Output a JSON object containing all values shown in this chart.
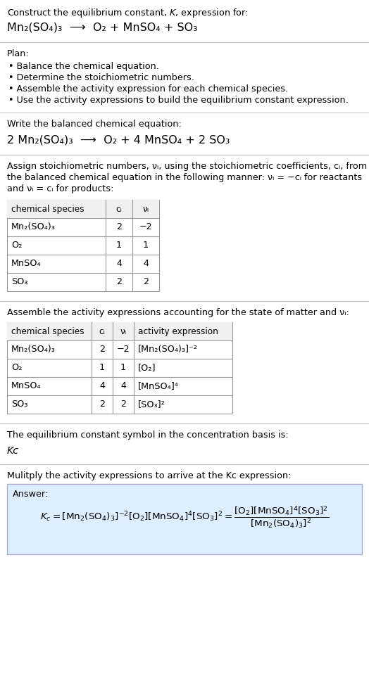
{
  "title_line1": "Construct the equilibrium constant, $K$, expression for:",
  "title_line2_plain": "Mn₂(SO₄)₃  ⟶  O₂ + MnSO₄ + SO₃",
  "plan_header": "Plan:",
  "plan_bullets": [
    "• Balance the chemical equation.",
    "• Determine the stoichiometric numbers.",
    "• Assemble the activity expression for each chemical species.",
    "• Use the activity expressions to build the equilibrium constant expression."
  ],
  "balanced_header": "Write the balanced chemical equation:",
  "balanced_eq_plain": "2 Mn₂(SO₄)₃  ⟶  O₂ + 4 MnSO₄ + 2 SO₃",
  "stoich_header_lines": [
    "Assign stoichiometric numbers, νᵢ, using the stoichiometric coefficients, cᵢ, from",
    "the balanced chemical equation in the following manner: νᵢ = −cᵢ for reactants",
    "and νᵢ = cᵢ for products:"
  ],
  "table1_headers": [
    "chemical species",
    "cᵢ",
    "νᵢ"
  ],
  "table1_rows": [
    [
      "Mn₂(SO₄)₃",
      "2",
      "−2"
    ],
    [
      "O₂",
      "1",
      "1"
    ],
    [
      "MnSO₄",
      "4",
      "4"
    ],
    [
      "SO₃",
      "2",
      "2"
    ]
  ],
  "activity_header": "Assemble the activity expressions accounting for the state of matter and νᵢ:",
  "table2_headers": [
    "chemical species",
    "cᵢ",
    "νᵢ",
    "activity expression"
  ],
  "table2_rows": [
    [
      "Mn₂(SO₄)₃",
      "2",
      "−2",
      "[Mn₂(SO₄)₃]⁻²"
    ],
    [
      "O₂",
      "1",
      "1",
      "[O₂]"
    ],
    [
      "MnSO₄",
      "4",
      "4",
      "[MnSO₄]⁴"
    ],
    [
      "SO₃",
      "2",
      "2",
      "[SO₃]²"
    ]
  ],
  "kc_symbol_header": "The equilibrium constant symbol in the concentration basis is:",
  "kc_symbol": "Kᴄ",
  "multiply_header": "Mulitply the activity expressions to arrive at the Kᴄ expression:",
  "answer_label": "Answer:",
  "bg_color": "#ffffff",
  "answer_box_color": "#ddeeff",
  "text_color": "#000000",
  "sep_color": "#bbbbbb",
  "table_border_color": "#999999"
}
